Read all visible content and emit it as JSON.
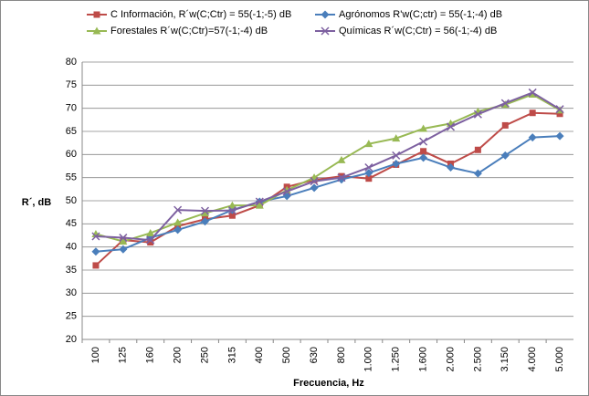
{
  "chart_data": {
    "type": "line",
    "y_label": "R´, dB",
    "x_label": "Frecuencia, Hz",
    "categories": [
      "100",
      "125",
      "160",
      "200",
      "250",
      "315",
      "400",
      "500",
      "630",
      "800",
      "1.000",
      "1.250",
      "1.600",
      "2.000",
      "2.500",
      "3.150",
      "4.000",
      "5.000"
    ],
    "ylim": [
      20,
      80
    ],
    "yticks": [
      20,
      25,
      30,
      35,
      40,
      45,
      50,
      55,
      60,
      65,
      70,
      75,
      80
    ],
    "grid": true,
    "series": [
      {
        "name": "C Información, R´w(C;Ctr) = 55(-1;-5) dB",
        "color": "#be4b48",
        "marker": "square",
        "values": [
          36,
          41.5,
          41,
          44.5,
          46,
          46.8,
          49,
          53,
          54.5,
          55.3,
          54.8,
          57.8,
          60.7,
          58,
          61,
          66.3,
          69,
          68.8
        ]
      },
      {
        "name": "Agrónomos R'w(C;ctr) = 55(-1;-4) dB",
        "color": "#4a7ebb",
        "marker": "diamond",
        "values": [
          39,
          39.5,
          42,
          43.7,
          45.5,
          48,
          49.8,
          51,
          52.8,
          54.6,
          56,
          58,
          59.3,
          57.2,
          55.9,
          59.8,
          63.7,
          64
        ]
      },
      {
        "name": "Forestales R´w(C;Ctr)=57(-1;-4) dB",
        "color": "#98b954",
        "marker": "triangle",
        "values": [
          42.8,
          41.2,
          43,
          45.3,
          47.3,
          49,
          49,
          52.3,
          55,
          58.8,
          62.3,
          63.5,
          65.6,
          66.7,
          69.3,
          70.8,
          73,
          69.6
        ]
      },
      {
        "name": "Químicas R´w(C;Ctr) = 56(-1;-4) dB",
        "color": "#7d60a0",
        "marker": "x",
        "values": [
          42.3,
          42,
          41.5,
          48,
          47.8,
          47.9,
          49.8,
          52,
          54.2,
          55,
          57.2,
          59.8,
          62.8,
          66,
          68.7,
          71.1,
          73.4,
          69.8
        ]
      }
    ]
  }
}
